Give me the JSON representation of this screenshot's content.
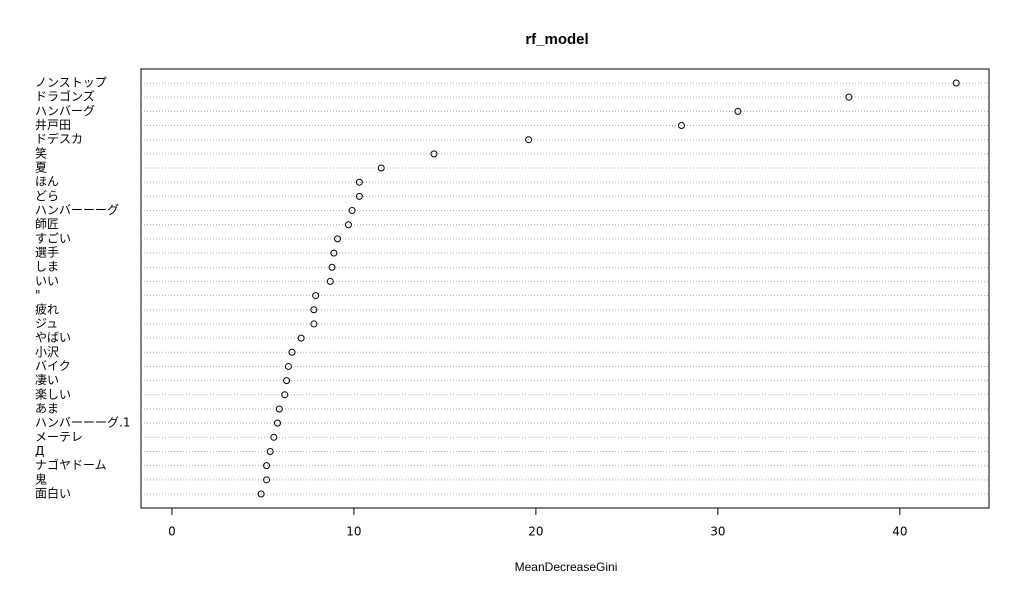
{
  "chart_data": {
    "type": "dotchart",
    "title": "rf_model",
    "x_label": "MeanDecreaseGini",
    "categories": [
      "ノンストップ",
      "ドラゴンズ",
      "ハンバーグ",
      "井戸田",
      "ドデスカ",
      "笑",
      "夏",
      "ほん",
      "どら",
      "ハンバーーーグ",
      "師匠",
      "すごい",
      "選手",
      "しま",
      "いい",
      "\"",
      "疲れ",
      "ジュ",
      "やばい",
      "小沢",
      "バイク",
      "凄い",
      "楽しい",
      "あま",
      "ハンバーーーグ.1",
      "メーテレ",
      "Д",
      "ナゴヤドーム",
      "鬼",
      "面白い"
    ],
    "values": [
      43.1,
      37.2,
      31.1,
      28.0,
      19.6,
      14.4,
      11.5,
      10.3,
      10.3,
      9.9,
      9.7,
      9.1,
      8.9,
      8.8,
      8.7,
      7.9,
      7.8,
      7.8,
      7.1,
      6.6,
      6.4,
      6.3,
      6.2,
      5.9,
      5.8,
      5.6,
      5.4,
      5.2,
      5.2,
      4.9
    ],
    "xlim": [
      -1.7,
      44.9
    ],
    "xticks": [
      0,
      10,
      20,
      30,
      40
    ],
    "color": "#000000"
  }
}
